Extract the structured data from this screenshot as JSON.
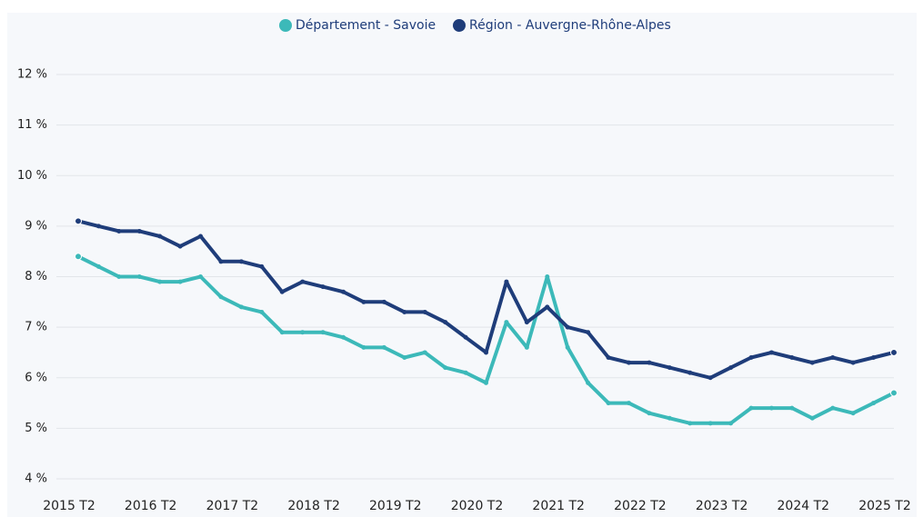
{
  "chart_data": {
    "type": "line",
    "categories": [
      "2015 T2",
      null,
      null,
      null,
      "2016 T2",
      null,
      null,
      null,
      "2017 T2",
      null,
      null,
      null,
      "2018 T2",
      null,
      null,
      null,
      "2019 T2",
      null,
      null,
      null,
      "2020 T2",
      null,
      null,
      null,
      "2021 T2",
      null,
      null,
      null,
      "2022 T2",
      null,
      null,
      null,
      "2023 T2",
      null,
      null,
      null,
      "2024 T2",
      null,
      null,
      null,
      "2025 T2"
    ],
    "series": [
      {
        "name": "Département - Savoie",
        "color": "#3cb9b9",
        "values": [
          8.4,
          8.2,
          8.0,
          8.0,
          7.9,
          7.9,
          8.0,
          7.6,
          7.4,
          7.3,
          6.9,
          6.9,
          6.9,
          6.8,
          6.6,
          6.6,
          6.4,
          6.5,
          6.2,
          6.1,
          5.9,
          7.1,
          6.6,
          8.0,
          6.6,
          5.9,
          5.5,
          5.5,
          5.3,
          5.2,
          5.1,
          5.1,
          5.1,
          5.4,
          5.4,
          5.4,
          5.2,
          5.4,
          5.3,
          5.5,
          5.7
        ]
      },
      {
        "name": "Région - Auvergne-Rhône-Alpes",
        "color": "#1f3d7a",
        "values": [
          9.1,
          9.0,
          8.9,
          8.9,
          8.8,
          8.6,
          8.8,
          8.3,
          8.3,
          8.2,
          7.7,
          7.9,
          7.8,
          7.7,
          7.5,
          7.5,
          7.3,
          7.3,
          7.1,
          6.8,
          6.5,
          7.9,
          7.1,
          7.4,
          7.0,
          6.9,
          6.4,
          6.3,
          6.3,
          6.2,
          6.1,
          6.0,
          6.2,
          6.4,
          6.5,
          6.4,
          6.3,
          6.4,
          6.3,
          6.4,
          6.5
        ]
      }
    ],
    "ylim": [
      4,
      12
    ],
    "yticks": [
      {
        "value": 4,
        "label": "4 %"
      },
      {
        "value": 5,
        "label": "5 %"
      },
      {
        "value": 6,
        "label": "6 %"
      },
      {
        "value": 7,
        "label": "7 %"
      },
      {
        "value": 8,
        "label": "8 %"
      },
      {
        "value": 9,
        "label": "9 %"
      },
      {
        "value": 10,
        "label": "10 %"
      },
      {
        "value": 11,
        "label": "11 %"
      },
      {
        "value": 12,
        "label": "12 %"
      }
    ],
    "grid": true,
    "legend": "top"
  }
}
